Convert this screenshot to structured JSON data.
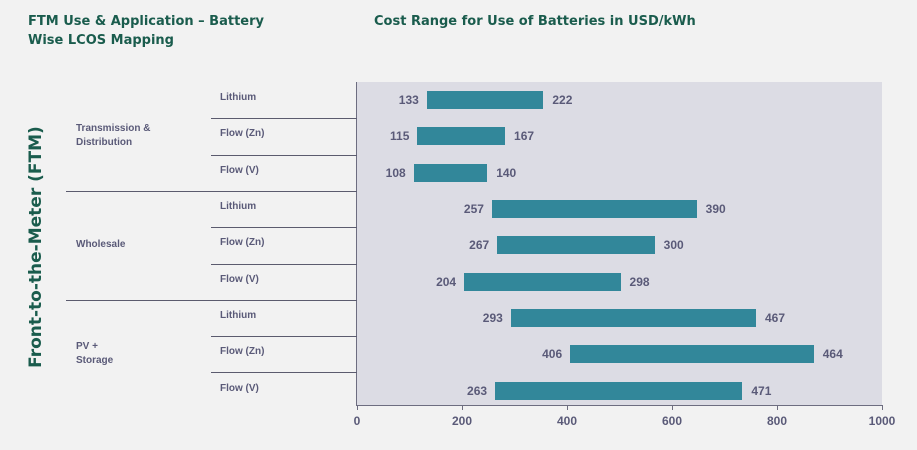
{
  "title_left": "FTM Use & Application – Battery Wise LCOS Mapping",
  "chart_data": {
    "type": "bar",
    "orientation": "horizontal-range",
    "title": "Cost Range for Use of Batteries in USD/kWh",
    "ylabel": "Front-to-the-Meter (FTM)",
    "xlim": [
      0,
      1000
    ],
    "xticks": [
      0,
      200,
      400,
      600,
      800,
      1000
    ],
    "groups": [
      {
        "application_lines": [
          "Transmission &",
          "Distribution"
        ],
        "rows": [
          {
            "battery": "Lithium",
            "label_low": "133",
            "label_high": "222"
          },
          {
            "battery": "Flow (Zn)",
            "label_low": "115",
            "label_high": "167"
          },
          {
            "battery": "Flow (V)",
            "label_low": "108",
            "label_high": "140"
          }
        ]
      },
      {
        "application_lines": [
          "Wholesale"
        ],
        "rows": [
          {
            "battery": "Lithium",
            "label_low": "257",
            "label_high": "390"
          },
          {
            "battery": "Flow (Zn)",
            "label_low": "267",
            "label_high": "300"
          },
          {
            "battery": "Flow (V)",
            "label_low": "204",
            "label_high": "298"
          }
        ]
      },
      {
        "application_lines": [
          "PV +",
          "Storage"
        ],
        "rows": [
          {
            "battery": "Lithium",
            "label_low": "293",
            "label_high": "467"
          },
          {
            "battery": "Flow (Zn)",
            "label_low": "406",
            "label_high": "464"
          },
          {
            "battery": "Flow (V)",
            "label_low": "263",
            "label_high": "471"
          }
        ]
      }
    ],
    "bar_extents": [
      [
        133,
        355
      ],
      [
        115,
        282
      ],
      [
        108,
        248
      ],
      [
        257,
        647
      ],
      [
        267,
        567
      ],
      [
        204,
        502
      ],
      [
        293,
        760
      ],
      [
        406,
        870
      ],
      [
        263,
        734
      ]
    ]
  },
  "colors": {
    "bar": "#32879a",
    "title": "#1a5c4d",
    "text": "#5a5a78",
    "plot_bg": "#dcdce4",
    "page_bg": "#f2f2f2"
  }
}
